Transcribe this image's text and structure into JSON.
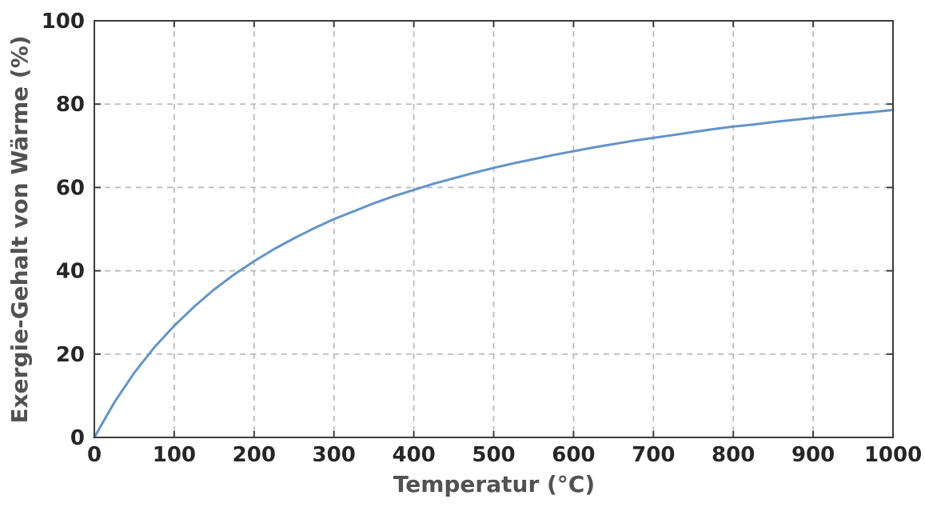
{
  "colors": {
    "background": "#ffffff",
    "axis_border": "#3c3c3c",
    "grid": "#b9b9b9",
    "tick_labels": "#262626",
    "axis_titles": "#525252"
  },
  "chart_data": {
    "type": "line",
    "title": "",
    "xlabel": "Temperatur (°C)",
    "ylabel": "Exergie-Gehalt von Wärme (%)",
    "xlim": [
      0,
      1000
    ],
    "ylim": [
      0,
      100
    ],
    "xticks": [
      0,
      100,
      200,
      300,
      400,
      500,
      600,
      700,
      800,
      900,
      1000
    ],
    "yticks": [
      0,
      20,
      40,
      60,
      80,
      100
    ],
    "grid": "dashed",
    "legend": "none",
    "series": [
      {
        "name": "Exergie-Gehalt von Wärme",
        "color": "#6494C8",
        "line_width": 3,
        "x": [
          0,
          25,
          50,
          75,
          100,
          125,
          150,
          175,
          200,
          225,
          250,
          275,
          300,
          325,
          350,
          375,
          400,
          425,
          450,
          475,
          500,
          525,
          550,
          575,
          600,
          625,
          650,
          675,
          700,
          725,
          750,
          775,
          800,
          825,
          850,
          875,
          900,
          925,
          950,
          975,
          1000
        ],
        "y": [
          0,
          8.4,
          15.5,
          21.6,
          26.8,
          31.4,
          35.5,
          39.1,
          42.3,
          45.2,
          47.8,
          50.2,
          52.4,
          54.3,
          56.2,
          57.9,
          59.4,
          60.9,
          62.2,
          63.5,
          64.7,
          65.8,
          66.8,
          67.8,
          68.7,
          69.6,
          70.4,
          71.2,
          71.9,
          72.6,
          73.3,
          74.0,
          74.6,
          75.1,
          75.7,
          76.2,
          76.7,
          77.2,
          77.7,
          78.1,
          78.6
        ]
      }
    ]
  }
}
